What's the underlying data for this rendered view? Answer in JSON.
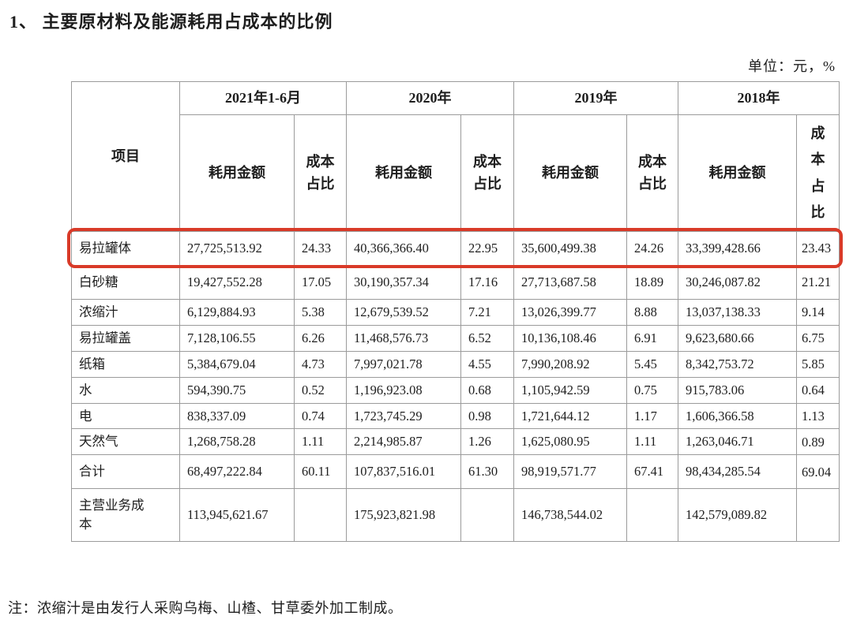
{
  "title": "1、 主要原材料及能源耗用占成本的比例",
  "unit_label": "单位：元，%",
  "note": "注：浓缩汁是由发行人采购乌梅、山楂、甘草委外加工制成。",
  "highlight_color": "#d93a28",
  "table": {
    "item_header": "项目",
    "amount_header": "耗用金额",
    "pct_header": "成本占比",
    "periods": [
      {
        "label": "2021年1-6月"
      },
      {
        "label": "2020年"
      },
      {
        "label": "2019年"
      },
      {
        "label": "2018年"
      }
    ],
    "rows": [
      {
        "item": "易拉罐体",
        "highlighted": true,
        "values": [
          "27,725,513.92",
          "24.33",
          "40,366,366.40",
          "22.95",
          "35,600,499.38",
          "24.26",
          "33,399,428.66",
          "23.43"
        ]
      },
      {
        "item": "白砂糖",
        "values": [
          "19,427,552.28",
          "17.05",
          "30,190,357.34",
          "17.16",
          "27,713,687.58",
          "18.89",
          "30,246,087.82",
          "21.21"
        ]
      },
      {
        "item": "浓缩汁",
        "values": [
          "6,129,884.93",
          "5.38",
          "12,679,539.52",
          "7.21",
          "13,026,399.77",
          "8.88",
          "13,037,138.33",
          "9.14"
        ]
      },
      {
        "item": "易拉罐盖",
        "values": [
          "7,128,106.55",
          "6.26",
          "11,468,576.73",
          "6.52",
          "10,136,108.46",
          "6.91",
          "9,623,680.66",
          "6.75"
        ]
      },
      {
        "item": "纸箱",
        "values": [
          "5,384,679.04",
          "4.73",
          "7,997,021.78",
          "4.55",
          "7,990,208.92",
          "5.45",
          "8,342,753.72",
          "5.85"
        ]
      },
      {
        "item": "水",
        "values": [
          "594,390.75",
          "0.52",
          "1,196,923.08",
          "0.68",
          "1,105,942.59",
          "0.75",
          "915,783.06",
          "0.64"
        ]
      },
      {
        "item": "电",
        "values": [
          "838,337.09",
          "0.74",
          "1,723,745.29",
          "0.98",
          "1,721,644.12",
          "1.17",
          "1,606,366.58",
          "1.13"
        ]
      },
      {
        "item": "天然气",
        "values": [
          "1,268,758.28",
          "1.11",
          "2,214,985.87",
          "1.26",
          "1,625,080.95",
          "1.11",
          "1,263,046.71",
          "0.89"
        ]
      },
      {
        "item": "合计",
        "values": [
          "68,497,222.84",
          "60.11",
          "107,837,516.01",
          "61.30",
          "98,919,571.77",
          "67.41",
          "98,434,285.54",
          "69.04"
        ]
      },
      {
        "item": "主营业务成本",
        "values": [
          "113,945,621.67",
          "",
          "175,923,821.98",
          "",
          "146,738,544.02",
          "",
          "142,579,089.82",
          ""
        ]
      }
    ]
  }
}
